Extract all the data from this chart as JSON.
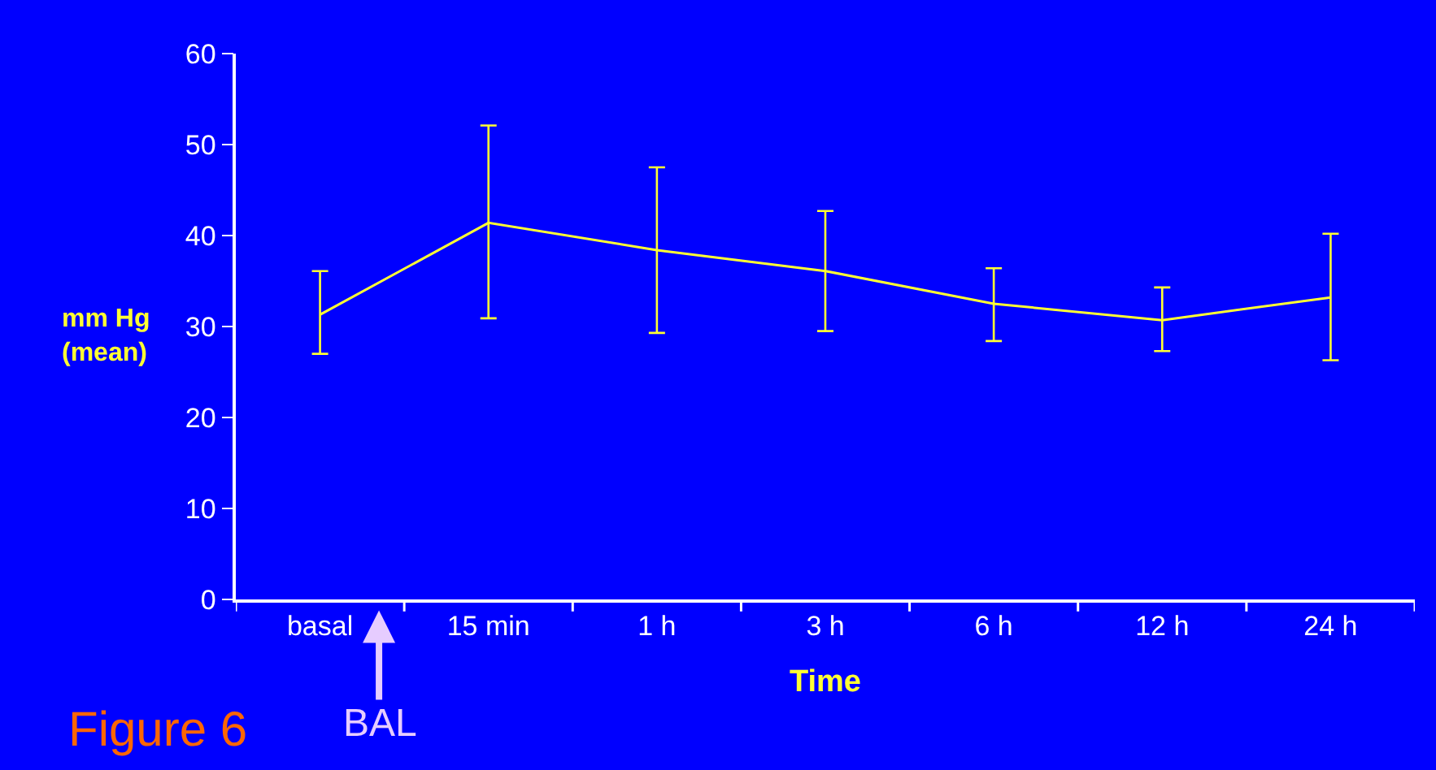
{
  "chart_data": {
    "type": "line",
    "xlabel": "Time",
    "ylabel": "mm Hg\n(mean)",
    "categories": [
      "basal",
      "15 min",
      "1 h",
      "3 h",
      "6 h",
      "12 h",
      "24 h"
    ],
    "series": [
      {
        "color": "#ffff33",
        "values": [
          31.3,
          41.4,
          38.4,
          36.1,
          32.5,
          30.7,
          33.2
        ],
        "errors": [
          [
            27.0,
            36.1
          ],
          [
            30.9,
            52.1
          ],
          [
            29.3,
            47.5
          ],
          [
            29.5,
            42.7
          ],
          [
            28.4,
            36.4
          ],
          [
            27.3,
            34.3
          ],
          [
            26.3,
            40.2
          ]
        ]
      }
    ],
    "ylim": [
      0,
      60
    ],
    "yticks": [
      0,
      10,
      20,
      30,
      40,
      50,
      60
    ],
    "grid": false,
    "marker": "none",
    "line_style": "solid",
    "annotations": [
      "BAL",
      "Figure 6"
    ]
  }
}
